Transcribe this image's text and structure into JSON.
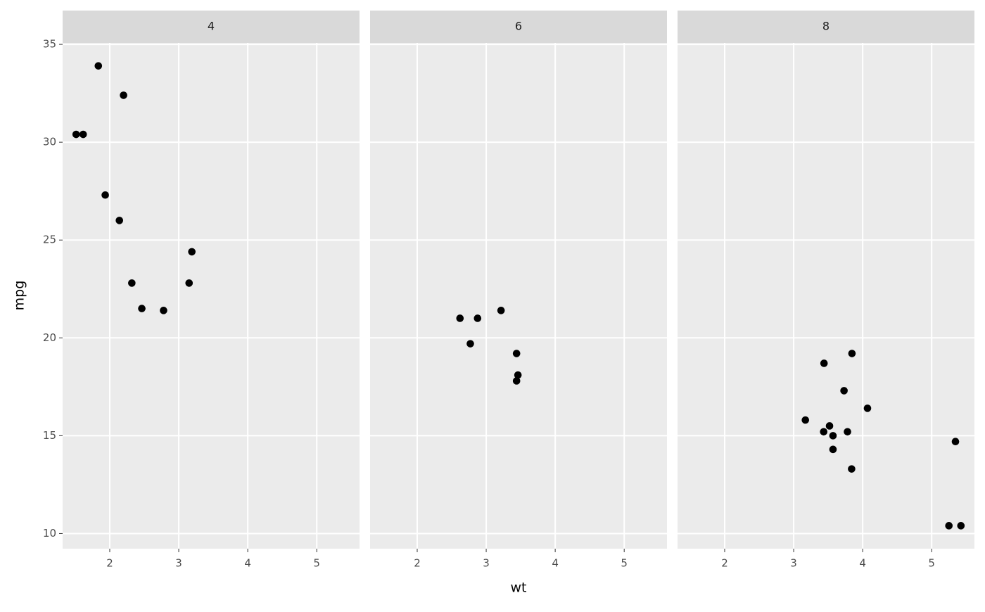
{
  "chart_data": {
    "type": "scatter",
    "x_label": "wt",
    "y_label": "mpg",
    "xlim": [
      1.317,
      5.62
    ],
    "ylim": [
      9.225,
      35.075
    ],
    "xticks": [
      2,
      3,
      4,
      5
    ],
    "yticks": [
      10,
      15,
      20,
      25,
      30,
      35
    ],
    "grid": true,
    "color": "#000000",
    "facets": [
      {
        "title": "4",
        "x": [
          2.32,
          3.19,
          3.15,
          2.2,
          1.615,
          1.835,
          2.465,
          1.935,
          2.14,
          1.513,
          2.78
        ],
        "y": [
          22.8,
          24.4,
          22.8,
          32.4,
          30.4,
          33.9,
          21.5,
          27.3,
          26,
          30.4,
          21.4
        ]
      },
      {
        "title": "6",
        "x": [
          2.62,
          2.875,
          3.215,
          3.46,
          3.44,
          3.44,
          2.77
        ],
        "y": [
          21,
          21,
          21.4,
          18.1,
          19.2,
          17.8,
          19.7
        ]
      },
      {
        "title": "8",
        "x": [
          3.44,
          3.57,
          4.07,
          3.73,
          3.78,
          5.25,
          5.424,
          5.345,
          3.52,
          3.435,
          3.84,
          3.845,
          3.17,
          3.57
        ],
        "y": [
          18.7,
          14.3,
          16.4,
          17.3,
          15.2,
          10.4,
          10.4,
          14.7,
          15.5,
          15.2,
          13.3,
          19.2,
          15.8,
          15
        ]
      }
    ]
  }
}
